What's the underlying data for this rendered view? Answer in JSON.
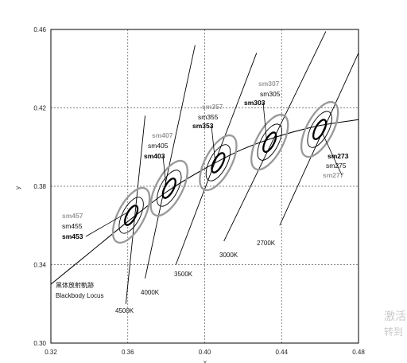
{
  "chart_data": {
    "type": "scatter",
    "xlabel": "x",
    "ylabel": "y",
    "xlim": [
      0.32,
      0.48
    ],
    "ylim": [
      0.3,
      0.46
    ],
    "x_ticks": [
      "0.32",
      "0.36",
      "0.40",
      "0.44",
      "0.48"
    ],
    "y_ticks": [
      "0.30",
      "0.34",
      "0.38",
      "0.42",
      "0.46"
    ],
    "grid": "dashed",
    "blackbody_locus": {
      "label_zh": "黑体放射軌跡",
      "label_en": "Blackbody Locus",
      "points": [
        [
          0.32,
          0.33
        ],
        [
          0.34,
          0.346
        ],
        [
          0.36,
          0.362
        ],
        [
          0.38,
          0.377
        ],
        [
          0.4,
          0.389
        ],
        [
          0.42,
          0.399
        ],
        [
          0.44,
          0.406
        ],
        [
          0.46,
          0.411
        ],
        [
          0.48,
          0.414
        ]
      ]
    },
    "isotemperature_lines": [
      {
        "label": "4500K",
        "from": [
          0.359,
          0.32
        ],
        "to": [
          0.369,
          0.416
        ]
      },
      {
        "label": "4000K",
        "from": [
          0.369,
          0.333
        ],
        "to": [
          0.395,
          0.452
        ]
      },
      {
        "label": "3500K",
        "from": [
          0.385,
          0.34
        ],
        "to": [
          0.427,
          0.448
        ]
      },
      {
        "label": "3000K",
        "from": [
          0.41,
          0.352
        ],
        "to": [
          0.463,
          0.459
        ]
      },
      {
        "label": "2700K",
        "from": [
          0.439,
          0.36
        ],
        "to": [
          0.48,
          0.448
        ]
      }
    ],
    "ellipse_groups": [
      {
        "center": [
          0.3618,
          0.3652
        ],
        "labels": [
          "sm457",
          "sm455",
          "sm453"
        ],
        "label_colors": [
          "#9a9a9a",
          "#111111",
          "#000000"
        ],
        "label_bold": [
          true,
          false,
          true
        ]
      },
      {
        "center": [
          0.3815,
          0.379
        ],
        "labels": [
          "sm407",
          "sm405",
          "sm403"
        ],
        "label_colors": [
          "#9a9a9a",
          "#111111",
          "#000000"
        ],
        "label_bold": [
          true,
          false,
          true
        ]
      },
      {
        "center": [
          0.407,
          0.392
        ],
        "labels": [
          "sm357",
          "sm355",
          "sm353"
        ],
        "label_colors": [
          "#9a9a9a",
          "#111111",
          "#000000"
        ],
        "label_bold": [
          true,
          false,
          true
        ]
      },
      {
        "center": [
          0.4338,
          0.4025
        ],
        "labels": [
          "sm307",
          "sm305",
          "sm303"
        ],
        "label_colors": [
          "#9a9a9a",
          "#111111",
          "#000000"
        ],
        "label_bold": [
          true,
          false,
          true
        ]
      },
      {
        "center": [
          0.4598,
          0.409
        ],
        "labels": [
          "sm273",
          "sm275",
          "sm277"
        ],
        "label_colors": [
          "#000000",
          "#111111",
          "#9a9a9a"
        ],
        "label_bold": [
          true,
          false,
          true
        ]
      }
    ],
    "colors": {
      "step1": "#000000",
      "step2": "#000000",
      "step3": "#999999",
      "grid": "#555555"
    }
  },
  "watermark": {
    "line1": "激活",
    "line2": "转到"
  }
}
